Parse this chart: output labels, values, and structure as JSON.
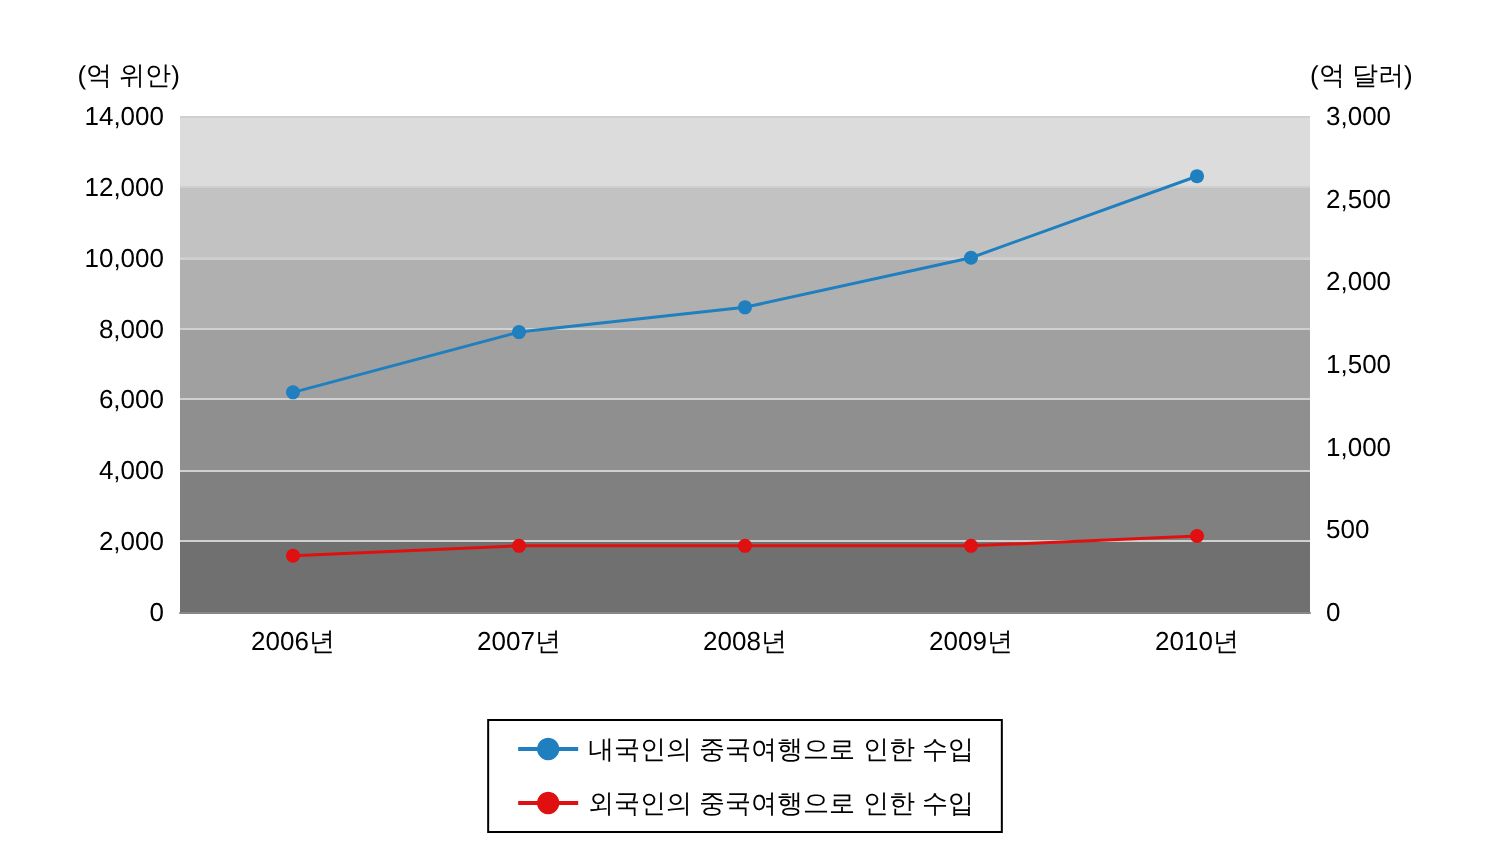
{
  "chart_data": {
    "type": "line",
    "ylabel": "(억 위안)",
    "y2label": "(억 달러)",
    "categories": [
      "2006년",
      "2007년",
      "2008년",
      "2009년",
      "2010년"
    ],
    "series": [
      {
        "name": "내국인의 중국여행으로 인한 수입",
        "color": "#1f7fbf",
        "values": [
          6200,
          7900,
          8600,
          10000,
          12300
        ]
      },
      {
        "name": "외국인의 중국여행으로 인한 수입",
        "color": "#e01010",
        "values": [
          340,
          400,
          400,
          400,
          460
        ],
        "axis": "y2"
      }
    ],
    "ylim": [
      0,
      14000
    ],
    "yticks": [
      0,
      {
        "value": 2000,
        "label": "2,000"
      },
      {
        "value": 4000,
        "label": "4,000"
      },
      {
        "value": 6000,
        "label": "6,000"
      },
      {
        "value": 8000,
        "label": "8,000"
      },
      {
        "value": 10000,
        "label": "10,000"
      },
      {
        "value": 12000,
        "label": "12,000"
      },
      {
        "value": 14000,
        "label": "14,000"
      }
    ],
    "y2lim": [
      0,
      3000
    ],
    "y2ticks": [
      0,
      500,
      {
        "value": 1000,
        "label": "1,000"
      },
      {
        "value": 1500,
        "label": "1,500"
      },
      {
        "value": 2000,
        "label": "2,000"
      },
      {
        "value": 2500,
        "label": "2,500"
      },
      {
        "value": 3000,
        "label": "3,000"
      }
    ],
    "bands": [
      {
        "axis": "y",
        "from": 0,
        "to": 2000,
        "color": "#707070"
      },
      {
        "axis": "y",
        "from": 2000,
        "to": 4000,
        "color": "#808080"
      },
      {
        "axis": "y",
        "from": 4000,
        "to": 6000,
        "color": "#8f8f8f"
      },
      {
        "axis": "y",
        "from": 6000,
        "to": 8000,
        "color": "#a0a0a0"
      },
      {
        "axis": "y",
        "from": 8000,
        "to": 10000,
        "color": "#b0b0b0"
      },
      {
        "axis": "y",
        "from": 10000,
        "to": 12000,
        "color": "#c2c2c2"
      },
      {
        "axis": "y",
        "from": 12000,
        "to": 14000,
        "color": "#dcdcdc"
      }
    ],
    "grid": "y",
    "legend": "bottom",
    "marker": "circle",
    "line_style": "solid"
  }
}
